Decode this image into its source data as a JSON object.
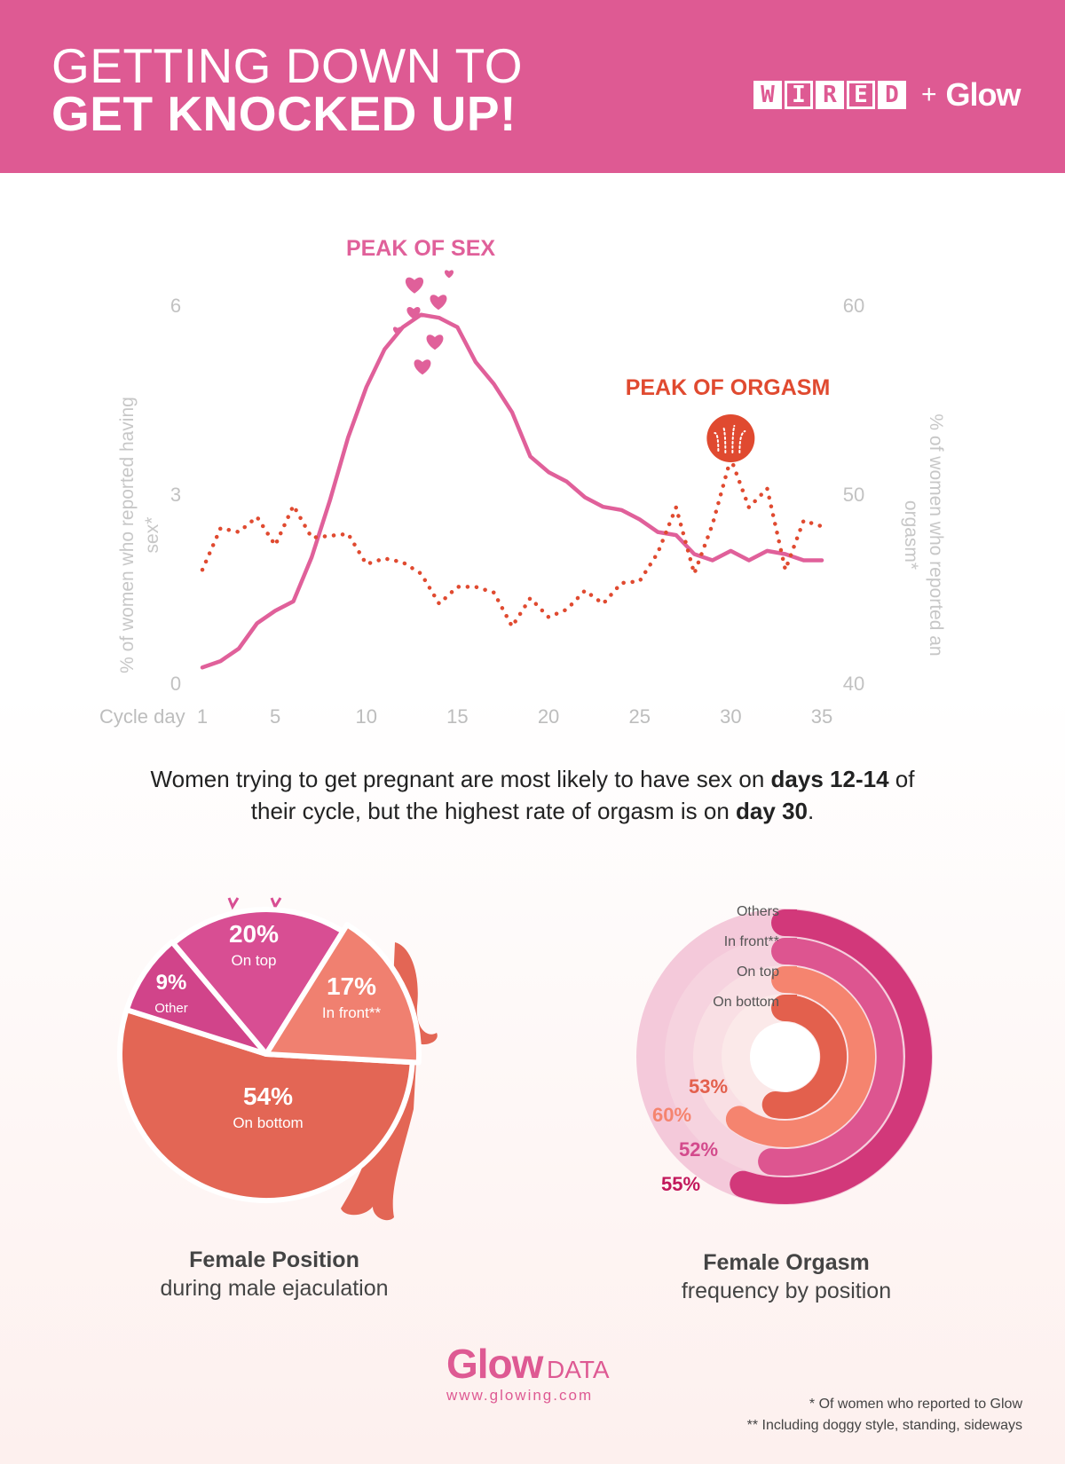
{
  "header": {
    "title_line1": "GETTING DOWN TO",
    "title_line2": "GET KNOCKED UP!",
    "brand_wired_letters": [
      "W",
      "I",
      "R",
      "E",
      "D"
    ],
    "brand_plus": "+",
    "brand_glow": "Glow",
    "colors": {
      "background": "#de5a93",
      "text": "#ffffff"
    }
  },
  "chart_data": [
    {
      "type": "line",
      "xlabel": "Cycle day",
      "x_ticks": [
        1,
        5,
        10,
        15,
        20,
        25,
        30,
        35
      ],
      "xlim": [
        1,
        35
      ],
      "left_axis": {
        "label": "% of women who reported having sex*",
        "ticks": [
          0,
          3,
          6
        ],
        "ylim": [
          0,
          6
        ]
      },
      "right_axis": {
        "label": "% of women who reported an orgasm*",
        "ticks": [
          40,
          50,
          60
        ],
        "ylim": [
          40,
          60
        ]
      },
      "annotations": [
        {
          "text": "PEAK OF SEX",
          "color": "#e0609a",
          "day": 13
        },
        {
          "text": "PEAK OF ORGASM",
          "color": "#e04a30",
          "day": 30
        }
      ],
      "series": [
        {
          "name": "% of women who reported having sex",
          "axis": "left",
          "style": "solid",
          "color": "#e0609a",
          "x": [
            1,
            2,
            3,
            4,
            5,
            6,
            7,
            8,
            9,
            10,
            11,
            12,
            13,
            14,
            15,
            16,
            17,
            18,
            19,
            20,
            21,
            22,
            23,
            24,
            25,
            26,
            27,
            28,
            29,
            30,
            31,
            32,
            33,
            34,
            35
          ],
          "values": [
            0.25,
            0.35,
            0.55,
            0.95,
            1.15,
            1.3,
            2.0,
            2.9,
            3.9,
            4.7,
            5.3,
            5.65,
            5.85,
            5.8,
            5.65,
            5.1,
            4.75,
            4.3,
            3.6,
            3.35,
            3.2,
            2.95,
            2.8,
            2.75,
            2.6,
            2.4,
            2.35,
            2.05,
            1.95,
            2.1,
            1.95,
            2.1,
            2.05,
            1.95,
            1.95
          ]
        },
        {
          "name": "% of women who reported an orgasm",
          "axis": "right",
          "style": "dotted",
          "color": "#e04a30",
          "x": [
            1,
            2,
            3,
            4,
            5,
            6,
            7,
            8,
            9,
            10,
            11,
            12,
            13,
            14,
            15,
            16,
            17,
            18,
            19,
            20,
            21,
            22,
            23,
            24,
            25,
            26,
            27,
            28,
            29,
            30,
            31,
            32,
            33,
            34,
            35
          ],
          "values": [
            46.0,
            48.2,
            48.0,
            48.8,
            47.3,
            49.4,
            47.7,
            47.8,
            47.9,
            46.3,
            46.6,
            46.4,
            45.8,
            44.2,
            45.1,
            45.1,
            44.8,
            43.0,
            44.5,
            43.5,
            43.9,
            44.9,
            44.2,
            45.3,
            45.4,
            46.9,
            49.3,
            45.8,
            48.4,
            51.9,
            49.3,
            50.3,
            46.0,
            48.6,
            48.3
          ]
        }
      ]
    },
    {
      "type": "pie",
      "title": "Female Position",
      "subtitle": "during male ejaculation",
      "slices": [
        {
          "label": "On bottom",
          "value": 54,
          "display": "54%",
          "color": "#e36655"
        },
        {
          "label": "Other",
          "value": 9,
          "display": "9%",
          "color": "#d1448a"
        },
        {
          "label": "On top",
          "value": 20,
          "display": "20%",
          "color": "#d84e93"
        },
        {
          "label": "In front**",
          "value": 17,
          "display": "17%",
          "color": "#f08070"
        }
      ]
    },
    {
      "type": "radial-bar",
      "title": "Female Orgasm",
      "subtitle": "frequency by position",
      "rings": [
        {
          "label": "On bottom",
          "value": 53,
          "display": "53%",
          "color": "#e3604d",
          "label_color": "#e3604d"
        },
        {
          "label": "On top",
          "value": 60,
          "display": "60%",
          "color": "#f5846f",
          "label_color": "#f5846f"
        },
        {
          "label": "In front**",
          "value": 52,
          "display": "52%",
          "color": "#dd5590",
          "label_color": "#d34a8c"
        },
        {
          "label": "Others",
          "value": 55,
          "display": "55%",
          "color": "#d2387a",
          "label_color": "#c2185b"
        }
      ]
    }
  ],
  "caption": {
    "part1": "Women trying to get pregnant are most likely to have sex on ",
    "bold1": "days 12-14",
    "part2": " of their cycle, but the highest rate of orgasm is on ",
    "bold2": "day 30",
    "part3": "."
  },
  "footer": {
    "glow": "Glow",
    "data": "DATA",
    "url": "www.glowing.com",
    "note1": "* Of women who reported to Glow",
    "note2": "** Including doggy style, standing, sideways"
  }
}
